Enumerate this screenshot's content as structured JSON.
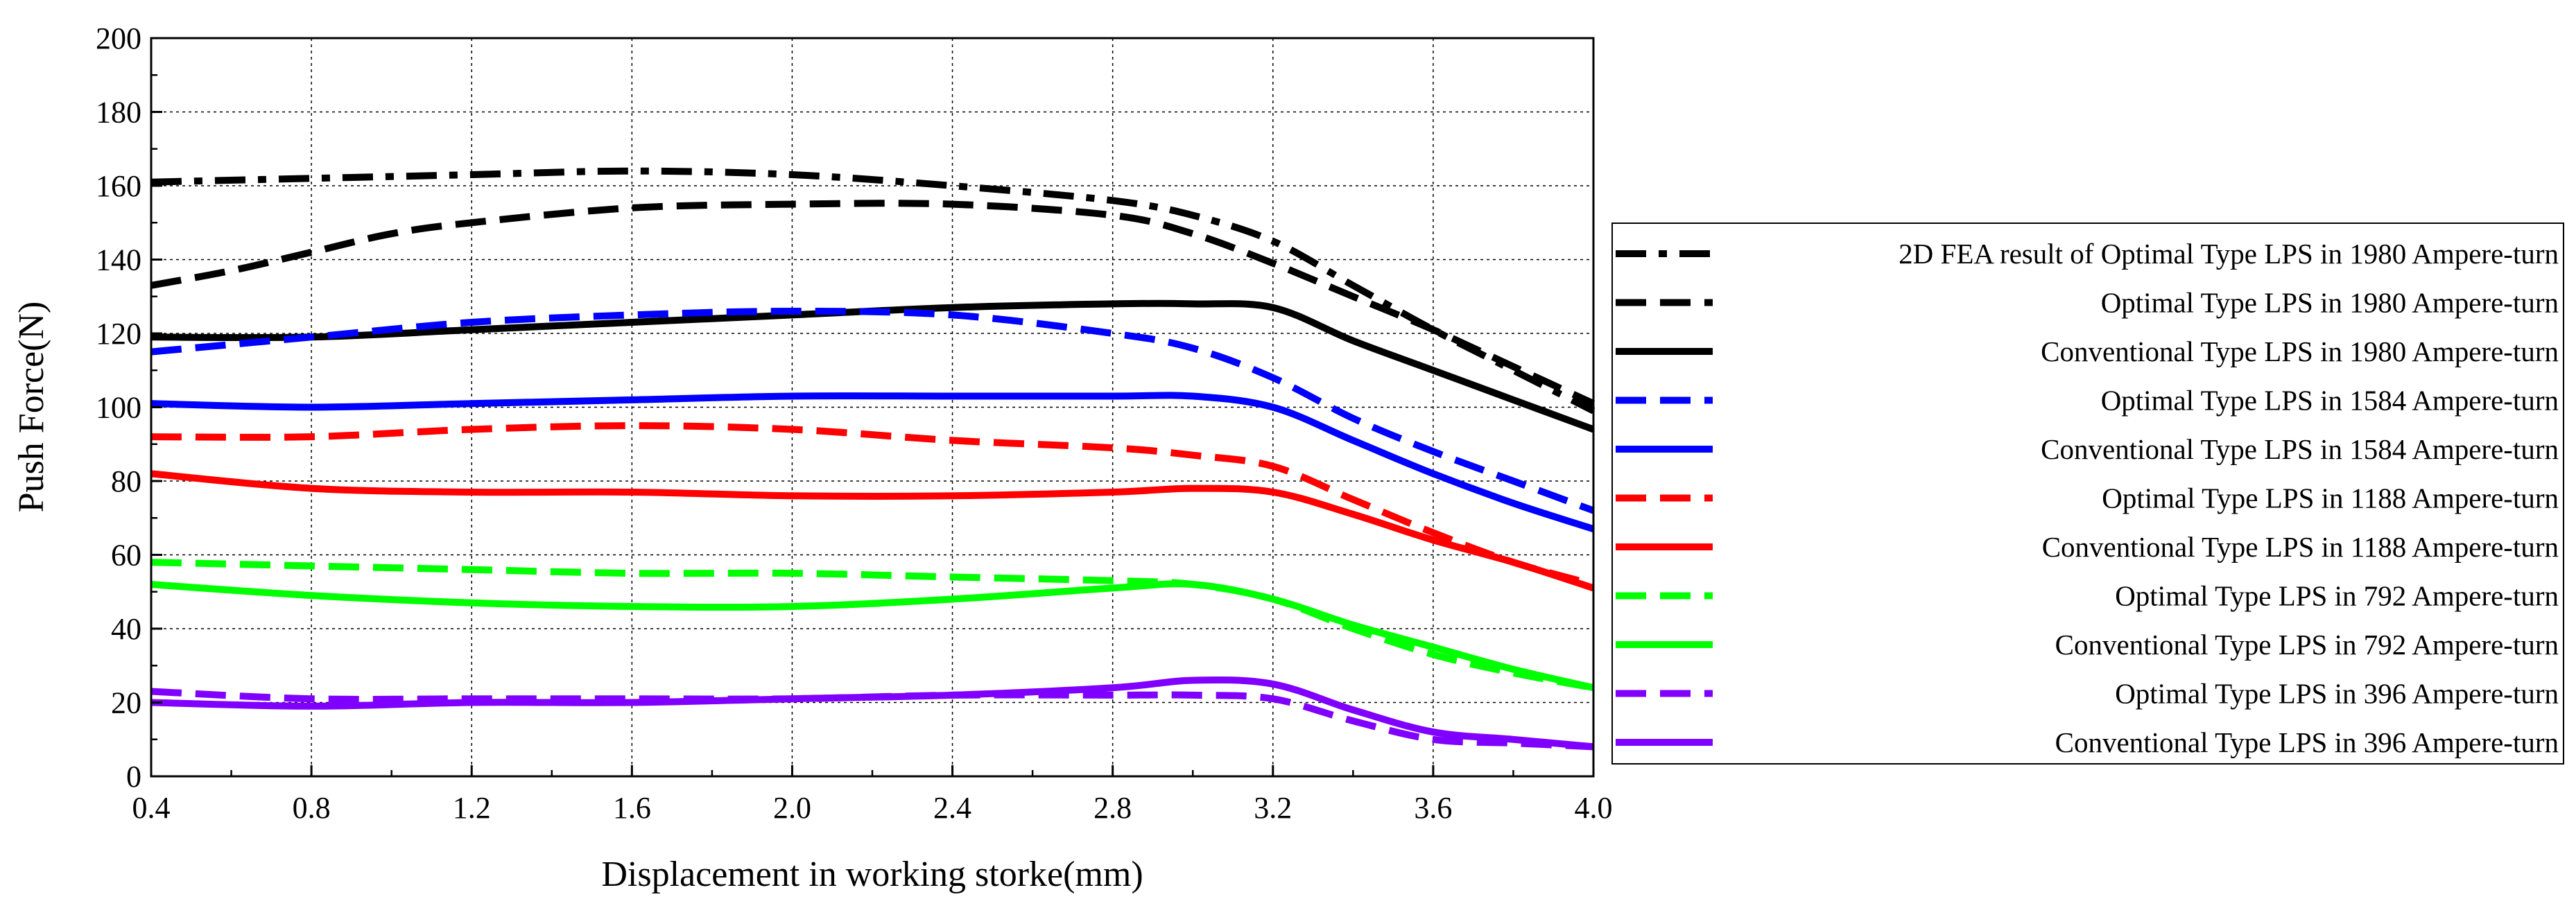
{
  "chart_data": {
    "type": "line",
    "title": "",
    "xlabel": "Displacement in working storke(mm)",
    "ylabel": "Push Force(N)",
    "xlim": [
      0.4,
      4.0
    ],
    "ylim": [
      0,
      200
    ],
    "xticks": [
      "0.4",
      "0.8",
      "1.2",
      "1.6",
      "2.0",
      "2.4",
      "2.8",
      "3.2",
      "3.6",
      "4.0"
    ],
    "yticks": [
      "0",
      "20",
      "40",
      "60",
      "80",
      "100",
      "120",
      "140",
      "160",
      "180",
      "200"
    ],
    "grid": true,
    "legend_position": "right",
    "series": [
      {
        "name": "2D FEA result of Optimal Type LPS in 1980 Ampere-turn",
        "color": "#000000",
        "style": "dashdot",
        "x": [
          0.4,
          0.8,
          1.2,
          1.6,
          2.0,
          2.4,
          2.8,
          3.0,
          3.2,
          3.4,
          3.6,
          3.8,
          4.0
        ],
        "y": [
          161,
          162,
          163,
          164,
          163,
          160,
          156,
          152,
          145,
          133,
          121,
          110,
          99
        ]
      },
      {
        "name": "Optimal Type LPS in 1980 Ampere-turn",
        "color": "#000000",
        "style": "dash",
        "x": [
          0.4,
          0.6,
          0.8,
          1.0,
          1.2,
          1.6,
          2.0,
          2.4,
          2.8,
          3.0,
          3.2,
          3.4,
          3.6,
          3.8,
          4.0
        ],
        "y": [
          133,
          137,
          142,
          147,
          150,
          154,
          155,
          155,
          152,
          147,
          139,
          130,
          121,
          111,
          101
        ]
      },
      {
        "name": "Conventional Type LPS in 1980 Ampere-turn",
        "color": "#000000",
        "style": "solid",
        "x": [
          0.4,
          0.8,
          1.2,
          1.6,
          2.0,
          2.4,
          2.8,
          3.0,
          3.2,
          3.4,
          3.6,
          3.8,
          4.0
        ],
        "y": [
          119,
          119,
          121,
          123,
          125,
          127,
          128,
          128,
          127,
          118,
          110,
          102,
          94
        ]
      },
      {
        "name": "Optimal Type LPS in 1584 Ampere-turn",
        "color": "#0000ff",
        "style": "dash",
        "x": [
          0.4,
          0.8,
          1.2,
          1.6,
          2.0,
          2.4,
          2.8,
          3.0,
          3.2,
          3.4,
          3.6,
          3.8,
          4.0
        ],
        "y": [
          115,
          119,
          123,
          125,
          126,
          125,
          120,
          116,
          108,
          97,
          88,
          80,
          72
        ]
      },
      {
        "name": "Conventional Type LPS in 1584 Ampere-turn",
        "color": "#0000ff",
        "style": "solid",
        "x": [
          0.4,
          0.8,
          1.2,
          1.6,
          2.0,
          2.4,
          2.8,
          3.0,
          3.2,
          3.4,
          3.6,
          3.8,
          4.0
        ],
        "y": [
          101,
          100,
          101,
          102,
          103,
          103,
          103,
          103,
          100,
          91,
          82,
          74,
          67
        ]
      },
      {
        "name": "Optimal Type LPS in 1188 Ampere-turn",
        "color": "#ff0000",
        "style": "dash",
        "x": [
          0.4,
          0.8,
          1.2,
          1.6,
          2.0,
          2.4,
          2.8,
          3.0,
          3.2,
          3.4,
          3.6,
          3.8,
          4.0
        ],
        "y": [
          92,
          92,
          94,
          95,
          94,
          91,
          89,
          87,
          84,
          75,
          66,
          58,
          52
        ]
      },
      {
        "name": "Conventional Type LPS in 1188 Ampere-turn",
        "color": "#ff0000",
        "style": "solid",
        "x": [
          0.4,
          0.8,
          1.2,
          1.6,
          2.0,
          2.4,
          2.8,
          3.0,
          3.2,
          3.4,
          3.6,
          3.8,
          4.0
        ],
        "y": [
          82,
          78,
          77,
          77,
          76,
          76,
          77,
          78,
          77,
          71,
          64,
          58,
          51
        ]
      },
      {
        "name": "Optimal Type LPS in 792 Ampere-turn",
        "color": "#00ff00",
        "style": "dash",
        "x": [
          0.4,
          0.8,
          1.2,
          1.6,
          2.0,
          2.4,
          2.8,
          3.0,
          3.2,
          3.4,
          3.6,
          3.8,
          4.0
        ],
        "y": [
          58,
          57,
          56,
          55,
          55,
          54,
          53,
          52,
          48,
          40,
          33,
          28,
          24
        ]
      },
      {
        "name": "Conventional Type LPS in 792 Ampere-turn",
        "color": "#00ff00",
        "style": "solid",
        "x": [
          0.4,
          0.8,
          1.2,
          1.6,
          2.0,
          2.4,
          2.8,
          3.0,
          3.2,
          3.4,
          3.6,
          3.8,
          4.0
        ],
        "y": [
          52,
          49,
          47,
          46,
          46,
          48,
          51,
          52,
          48,
          41,
          35,
          29,
          24
        ]
      },
      {
        "name": "Optimal Type LPS in 396 Ampere-turn",
        "color": "#8000ff",
        "style": "dash",
        "x": [
          0.4,
          0.8,
          1.2,
          1.6,
          2.0,
          2.4,
          2.8,
          3.0,
          3.2,
          3.4,
          3.6,
          3.8,
          4.0
        ],
        "y": [
          23,
          21,
          21,
          21,
          21,
          22,
          22,
          22,
          21,
          15,
          10,
          9,
          8
        ]
      },
      {
        "name": "Conventional Type LPS in 396 Ampere-turn",
        "color": "#8000ff",
        "style": "solid",
        "x": [
          0.4,
          0.8,
          1.2,
          1.6,
          2.0,
          2.4,
          2.8,
          3.0,
          3.2,
          3.4,
          3.6,
          3.8,
          4.0
        ],
        "y": [
          20,
          19,
          20,
          20,
          21,
          22,
          24,
          26,
          25,
          18,
          12,
          10,
          8
        ]
      }
    ]
  }
}
